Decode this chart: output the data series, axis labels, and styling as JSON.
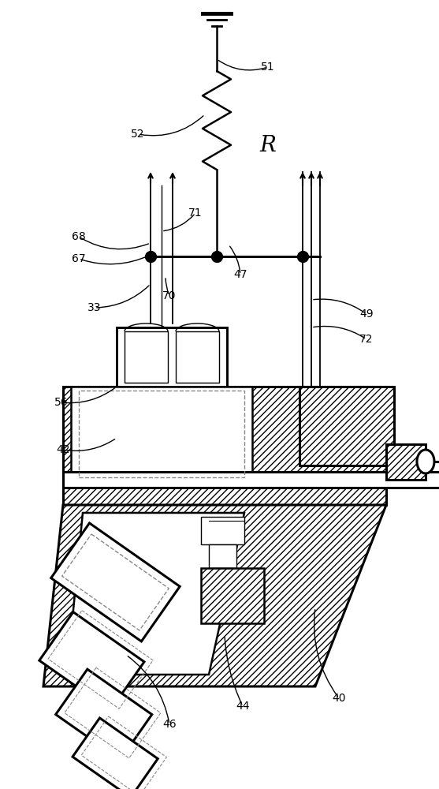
{
  "figsize": [
    5.57,
    10.0
  ],
  "dpi": 100,
  "bg_color": "#ffffff",
  "lw_main": 1.8,
  "lw_thick": 2.2,
  "lw_thin": 1.0,
  "lw_label": 1.0,
  "label_fontsize": 10,
  "R_fontsize": 20
}
